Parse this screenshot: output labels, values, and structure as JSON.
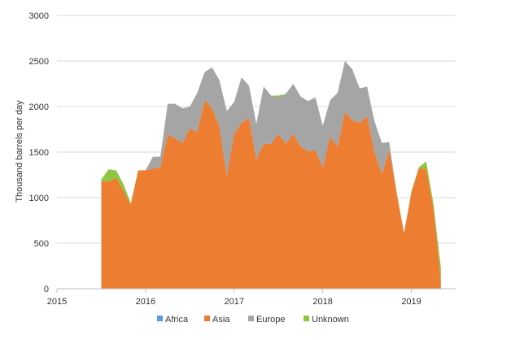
{
  "chart_data": {
    "type": "area",
    "stacked": true,
    "title": "",
    "xlabel": "",
    "ylabel": "Thousand barrels per day",
    "ylim": [
      0,
      3000
    ],
    "xlim": [
      2015.0,
      2019.5
    ],
    "yticks": [
      "0",
      "500",
      "1000",
      "1500",
      "2000",
      "2500",
      "3000"
    ],
    "xticks": [
      "2015",
      "2016",
      "2017",
      "2018",
      "2019"
    ],
    "grid": true,
    "legend": "bottom",
    "x": [
      2015.5,
      2015.583,
      2015.667,
      2015.75,
      2015.833,
      2015.917,
      2016.0,
      2016.083,
      2016.167,
      2016.25,
      2016.333,
      2016.417,
      2016.5,
      2016.583,
      2016.667,
      2016.75,
      2016.833,
      2016.917,
      2017.0,
      2017.083,
      2017.167,
      2017.25,
      2017.333,
      2017.417,
      2017.5,
      2017.583,
      2017.667,
      2017.75,
      2017.833,
      2017.917,
      2018.0,
      2018.083,
      2018.167,
      2018.25,
      2018.333,
      2018.417,
      2018.5,
      2018.583,
      2018.667,
      2018.75,
      2018.833,
      2018.917,
      2019.0,
      2019.083,
      2019.167,
      2019.25,
      2019.333
    ],
    "series": [
      {
        "name": "Africa",
        "color": "#5b9bd5",
        "values": [
          0,
          0,
          0,
          0,
          0,
          0,
          0,
          0,
          0,
          0,
          0,
          0,
          0,
          0,
          0,
          0,
          0,
          0,
          0,
          0,
          0,
          0,
          0,
          0,
          0,
          0,
          0,
          0,
          0,
          0,
          0,
          0,
          0,
          0,
          0,
          0,
          0,
          0,
          0,
          0,
          0,
          0,
          0,
          0,
          0,
          0,
          0
        ]
      },
      {
        "name": "Asia",
        "color": "#ed7d31",
        "values": [
          1180,
          1180,
          1220,
          1080,
          920,
          1300,
          1300,
          1320,
          1330,
          1690,
          1650,
          1600,
          1760,
          1720,
          2070,
          1980,
          1780,
          1240,
          1700,
          1820,
          1880,
          1420,
          1590,
          1590,
          1700,
          1590,
          1700,
          1560,
          1510,
          1520,
          1330,
          1670,
          1560,
          1940,
          1850,
          1820,
          1900,
          1500,
          1260,
          1520,
          1060,
          610,
          1050,
          1320,
          1320,
          880,
          100
        ]
      },
      {
        "name": "Europe",
        "color": "#a5a5a5",
        "values": [
          0,
          0,
          0,
          0,
          0,
          0,
          0,
          130,
          120,
          340,
          380,
          380,
          240,
          430,
          310,
          450,
          510,
          710,
          350,
          500,
          350,
          390,
          630,
          530,
          400,
          550,
          550,
          550,
          550,
          580,
          460,
          400,
          590,
          560,
          560,
          380,
          320,
          340,
          340,
          90,
          0,
          0,
          0,
          0,
          0,
          0,
          0
        ]
      },
      {
        "name": "Unknown",
        "color": "#8dc63f",
        "values": [
          20,
          130,
          80,
          70,
          20,
          0,
          0,
          0,
          0,
          0,
          0,
          0,
          0,
          0,
          0,
          0,
          0,
          0,
          0,
          0,
          0,
          0,
          0,
          0,
          20,
          0,
          0,
          0,
          0,
          0,
          0,
          0,
          0,
          0,
          0,
          0,
          0,
          0,
          0,
          0,
          0,
          0,
          20,
          10,
          80,
          50,
          130
        ]
      }
    ]
  }
}
